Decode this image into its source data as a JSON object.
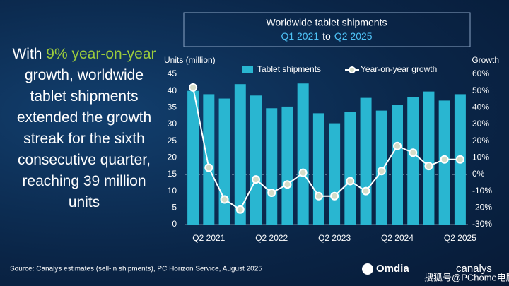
{
  "chart_data": {
    "type": "bar_line",
    "title": "Worldwide tablet shipments",
    "subtitle_parts": [
      {
        "text": "Q1 2021",
        "color": "#4fc3f7"
      },
      {
        "text": "to",
        "color": "#ffffff"
      },
      {
        "text": "Q2 2025",
        "color": "#4fc3f7"
      }
    ],
    "headline_parts": [
      {
        "text": "With",
        "color": "#ffffff"
      },
      {
        "text": "9% year-on-year",
        "color": "#9ccc3c"
      },
      {
        "text": "growth, worldwide tablet shipments extended the growth streak for the sixth consecutive quarter, reaching 39 million units",
        "color": "#ffffff"
      }
    ],
    "y_label": "Units (million)",
    "y2_label": "Growth",
    "categories": [
      null,
      "Q2 2021",
      null,
      null,
      null,
      "Q2 2022",
      null,
      null,
      null,
      "Q2 2023",
      null,
      null,
      null,
      "Q2 2024",
      null,
      null,
      null,
      "Q2 2025"
    ],
    "series": [
      {
        "name": "Tablet shipments",
        "type": "bar",
        "color": "#29b6d1",
        "values": [
          40,
          39,
          37.7,
          42,
          38.6,
          34.8,
          35.3,
          42.2,
          33.3,
          30.3,
          33.8,
          37.9,
          34.1,
          35.8,
          38.2,
          39.8,
          37.1,
          39
        ]
      },
      {
        "name": "Year-on-year growth",
        "type": "line",
        "axis": "y2",
        "color": "#ffffff",
        "marker_fill": "#d4dcc8",
        "values": [
          52,
          4,
          -15,
          -21,
          -3,
          -11,
          -6,
          1,
          -13,
          -13,
          -4,
          -10,
          2,
          17,
          13,
          5,
          9,
          9
        ]
      }
    ],
    "ylim": [
      0,
      45
    ],
    "yticks": [
      0,
      5,
      10,
      15,
      20,
      25,
      30,
      35,
      40,
      45
    ],
    "y2lim": [
      -30,
      60
    ],
    "y2ticks": [
      {
        "value": -30,
        "label": "-30%"
      },
      {
        "value": -20,
        "label": "-20%"
      },
      {
        "value": -10,
        "label": "-10%"
      },
      {
        "value": 0,
        "label": "0%"
      },
      {
        "value": 10,
        "label": "10%"
      },
      {
        "value": 20,
        "label": "20%"
      },
      {
        "value": 30,
        "label": "30%"
      },
      {
        "value": 40,
        "label": "40%"
      },
      {
        "value": 50,
        "label": "50%"
      },
      {
        "value": 60,
        "label": "60%"
      }
    ],
    "zero_line": true,
    "source": "Source: Canalys estimates (sell-in shipments), PC Horizon Service, August 2025",
    "logos": [
      "Omdia",
      "canalys"
    ],
    "watermark": "搜狐号@PChome电脑之家"
  }
}
